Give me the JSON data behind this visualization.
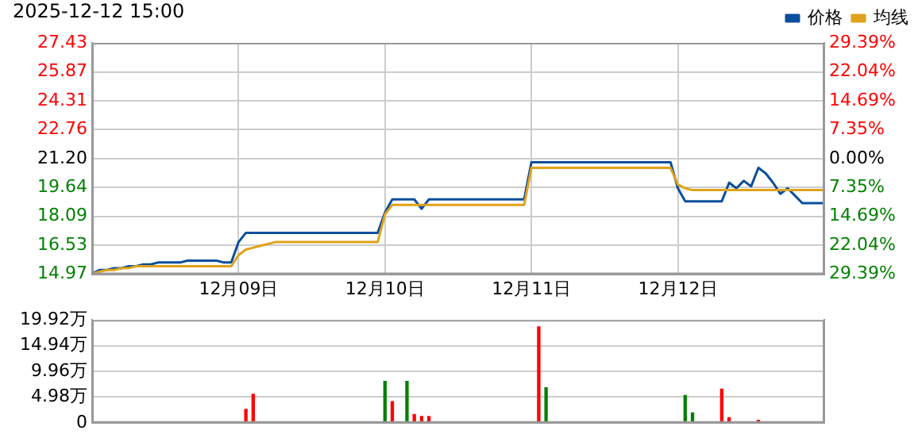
{
  "chart_data": [
    {
      "type": "line",
      "title": "2025-12-12 15:00",
      "legend": "top right",
      "grid": true,
      "categories": [
        null,
        null,
        null,
        null,
        null,
        null,
        null,
        null,
        null,
        null,
        null,
        null,
        null,
        null,
        null,
        null,
        null,
        null,
        null,
        null,
        "12月09日",
        null,
        null,
        null,
        null,
        null,
        null,
        null,
        null,
        null,
        null,
        null,
        null,
        null,
        null,
        null,
        null,
        null,
        null,
        null,
        "12月10日",
        null,
        null,
        null,
        null,
        null,
        null,
        null,
        null,
        null,
        null,
        null,
        null,
        null,
        null,
        null,
        null,
        null,
        null,
        null,
        "12月11日",
        null,
        null,
        null,
        null,
        null,
        null,
        null,
        null,
        null,
        null,
        null,
        null,
        null,
        null,
        null,
        null,
        null,
        null,
        null,
        "12月12日",
        null,
        null,
        null,
        null,
        null,
        null,
        null,
        null,
        null,
        null,
        null,
        null,
        null,
        null,
        null,
        null,
        null,
        null,
        null,
        null
      ],
      "ylim": [
        14.97,
        27.43
      ],
      "yticks": [
        14.97,
        16.53,
        18.09,
        19.64,
        {
          "value": 21.2,
          "label": "21.20"
        },
        22.76,
        24.31,
        25.87,
        27.43
      ],
      "y2lim": [
        -29.39,
        29.39
      ],
      "y2ticks": [
        {
          "value": -29.39,
          "label": "29.39%"
        },
        {
          "value": -22.04,
          "label": "22.04%"
        },
        {
          "value": -14.69,
          "label": "14.69%"
        },
        {
          "value": -7.35,
          "label": "7.35%"
        },
        {
          "value": 0,
          "label": "0.00%"
        },
        {
          "value": 7.35,
          "label": "7.35%"
        },
        {
          "value": 14.69,
          "label": "14.69%"
        },
        {
          "value": 22.04,
          "label": "22.04%"
        },
        {
          "value": 29.39,
          "label": "29.39%"
        }
      ],
      "series": [
        {
          "name": "价格",
          "color": "#0a4f9c",
          "values": [
            15.0,
            15.2,
            15.2,
            15.3,
            15.3,
            15.4,
            15.4,
            15.5,
            15.5,
            15.6,
            15.6,
            15.6,
            15.6,
            15.7,
            15.7,
            15.7,
            15.7,
            15.7,
            15.6,
            15.6,
            16.7,
            17.2,
            17.2,
            17.2,
            17.2,
            17.2,
            17.2,
            17.2,
            17.2,
            17.2,
            17.2,
            17.2,
            17.2,
            17.2,
            17.2,
            17.2,
            17.2,
            17.2,
            17.2,
            17.2,
            18.3,
            19.0,
            19.0,
            19.0,
            19.0,
            18.5,
            19.0,
            19.0,
            19.0,
            19.0,
            19.0,
            19.0,
            19.0,
            19.0,
            19.0,
            19.0,
            19.0,
            19.0,
            19.0,
            19.0,
            21.0,
            21.0,
            21.0,
            21.0,
            21.0,
            21.0,
            21.0,
            21.0,
            21.0,
            21.0,
            21.0,
            21.0,
            21.0,
            21.0,
            21.0,
            21.0,
            21.0,
            21.0,
            21.0,
            21.0,
            19.6,
            18.9,
            18.9,
            18.9,
            18.9,
            18.9,
            18.9,
            19.9,
            19.6,
            20.0,
            19.7,
            20.7,
            20.4,
            19.9,
            19.3,
            19.6,
            19.2,
            18.8,
            18.8,
            18.8,
            18.8
          ]
        },
        {
          "name": "均线",
          "color": "#e0a21a",
          "values": [
            15.0,
            15.1,
            15.2,
            15.2,
            15.3,
            15.3,
            15.4,
            15.4,
            15.4,
            15.4,
            15.4,
            15.4,
            15.4,
            15.4,
            15.4,
            15.4,
            15.4,
            15.4,
            15.4,
            15.4,
            16.0,
            16.3,
            16.4,
            16.5,
            16.6,
            16.7,
            16.7,
            16.7,
            16.7,
            16.7,
            16.7,
            16.7,
            16.7,
            16.7,
            16.7,
            16.7,
            16.7,
            16.7,
            16.7,
            16.7,
            18.2,
            18.7,
            18.7,
            18.7,
            18.7,
            18.7,
            18.7,
            18.7,
            18.7,
            18.7,
            18.7,
            18.7,
            18.7,
            18.7,
            18.7,
            18.7,
            18.7,
            18.7,
            18.7,
            18.7,
            20.7,
            20.7,
            20.7,
            20.7,
            20.7,
            20.7,
            20.7,
            20.7,
            20.7,
            20.7,
            20.7,
            20.7,
            20.7,
            20.7,
            20.7,
            20.7,
            20.7,
            20.7,
            20.7,
            20.7,
            19.8,
            19.6,
            19.5,
            19.5,
            19.5,
            19.5,
            19.5,
            19.5,
            19.5,
            19.5,
            19.5,
            19.5,
            19.5,
            19.5,
            19.5,
            19.5,
            19.5,
            19.5,
            19.5,
            19.5,
            19.5
          ]
        }
      ]
    },
    {
      "type": "bar",
      "grid": "y",
      "tick_labels": "y",
      "categories": [
        null,
        null,
        null,
        null,
        null,
        null,
        null,
        null,
        null,
        null,
        null,
        null,
        null,
        null,
        null,
        null,
        null,
        null,
        null,
        null,
        null,
        null,
        null,
        null,
        null,
        null,
        null,
        null,
        null,
        null,
        null,
        null,
        null,
        null,
        null,
        null,
        null,
        null,
        null,
        null,
        null,
        null,
        null,
        null,
        null,
        null,
        null,
        null,
        null,
        null,
        null,
        null,
        null,
        null,
        null,
        null,
        null,
        null,
        null,
        null,
        null,
        null,
        null,
        null,
        null,
        null,
        null,
        null,
        null,
        null,
        null,
        null,
        null,
        null,
        null,
        null,
        null,
        null,
        null,
        null,
        null,
        null,
        null,
        null,
        null,
        null,
        null,
        null,
        null,
        null,
        null,
        null,
        null,
        null,
        null,
        null,
        null,
        null,
        null,
        null,
        null
      ],
      "ylim": [
        0,
        19.92
      ],
      "yticks": [
        0,
        {
          "value": 4.98,
          "label": "4.98万"
        },
        {
          "value": 9.96,
          "label": "9.96万"
        },
        {
          "value": 14.94,
          "label": "14.94万"
        },
        {
          "value": 19.92,
          "label": "19.92万"
        }
      ],
      "values": [
        null,
        null,
        null,
        null,
        null,
        null,
        null,
        null,
        null,
        null,
        null,
        null,
        null,
        null,
        null,
        null,
        null,
        null,
        null,
        null,
        null,
        2.6,
        5.5,
        null,
        null,
        null,
        null,
        null,
        null,
        null,
        null,
        null,
        null,
        null,
        null,
        null,
        null,
        null,
        null,
        null,
        8.0,
        4.1,
        null,
        8.0,
        1.6,
        1.2,
        1.2,
        null,
        null,
        null,
        null,
        null,
        null,
        null,
        null,
        null,
        null,
        null,
        null,
        null,
        null,
        18.6,
        6.8,
        null,
        null,
        null,
        null,
        null,
        null,
        null,
        null,
        null,
        null,
        null,
        null,
        null,
        null,
        null,
        null,
        null,
        null,
        5.3,
        1.9,
        null,
        null,
        null,
        6.5,
        1.0,
        null,
        null,
        null,
        0.5,
        null,
        null,
        null,
        null,
        null,
        null,
        null,
        null,
        null
      ],
      "colors": [
        "#ff0000",
        "#ff0000",
        "#ff0000",
        "#ff0000",
        "#ff0000",
        "#ff0000",
        "#ff0000",
        "#ff0000",
        "#ff0000",
        "#ff0000",
        "#ff0000",
        "#ff0000",
        "#ff0000",
        "#ff0000",
        "#ff0000",
        "#ff0000",
        "#ff0000",
        "#ff0000",
        "#ff0000",
        "#ff0000",
        "#ff0000",
        "#ff0000",
        "#ff0000",
        "#ff0000",
        "#ff0000",
        "#ff0000",
        "#ff0000",
        "#ff0000",
        "#ff0000",
        "#ff0000",
        "#ff0000",
        "#ff0000",
        "#ff0000",
        "#ff0000",
        "#ff0000",
        "#ff0000",
        "#ff0000",
        "#ff0000",
        "#ff0000",
        "#ff0000",
        "#008000",
        "#ff0000",
        "#ff0000",
        "#008000",
        "#ff0000",
        "#ff0000",
        "#ff0000",
        "#ff0000",
        "#ff0000",
        "#ff0000",
        "#ff0000",
        "#ff0000",
        "#ff0000",
        "#ff0000",
        "#ff0000",
        "#ff0000",
        "#ff0000",
        "#ff0000",
        "#ff0000",
        "#ff0000",
        "#ff0000",
        "#ff0000",
        "#008000",
        "#ff0000",
        "#ff0000",
        "#ff0000",
        "#ff0000",
        "#ff0000",
        "#ff0000",
        "#ff0000",
        "#ff0000",
        "#ff0000",
        "#ff0000",
        "#ff0000",
        "#ff0000",
        "#ff0000",
        "#ff0000",
        "#ff0000",
        "#ff0000",
        "#ff0000",
        "#ff0000",
        "#008000",
        "#008000",
        "#ff0000",
        "#ff0000",
        "#ff0000",
        "#ff0000",
        "#ff0000",
        "#ff0000",
        "#ff0000",
        "#ff0000",
        "#ff0000",
        "#ff0000",
        "#ff0000",
        "#ff0000",
        "#ff0000",
        "#ff0000",
        "#008000",
        "#ff0000",
        "#ff0000",
        "#ff0000"
      ]
    }
  ]
}
